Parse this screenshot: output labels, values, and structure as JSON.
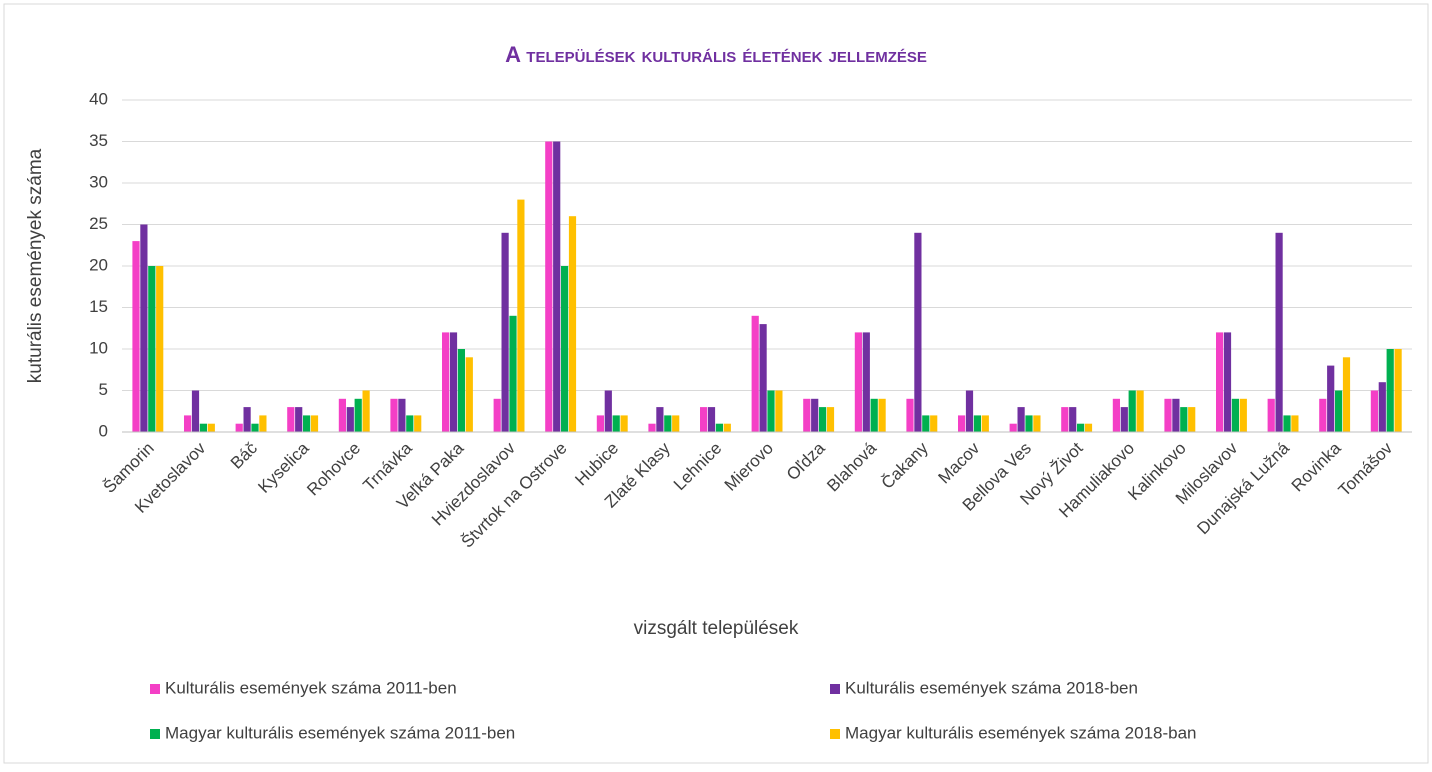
{
  "chart_data": {
    "type": "bar",
    "title": "A települések kulturális életének jellemzése",
    "x_label": "vizsgált települések",
    "y_label": "kuturális események száma",
    "categories": [
      "Šamorin",
      "Kvetoslavov",
      "Báč",
      "Kyselica",
      "Rohovce",
      "Trnávka",
      "Veľká Paka",
      "Hviezdoslavov",
      "Štvrtok na Ostrove",
      "Hubice",
      "Zlaté Klasy",
      "Lehnice",
      "Mierovo",
      "Oľdza",
      "Blahová",
      "Čakany",
      "Macov",
      "Bellova Ves",
      "Nový Život",
      "Hamuliakovo",
      "Kalinkovo",
      "Miloslavov",
      "Dunajská Lužná",
      "Rovinka",
      "Tomášov"
    ],
    "series": [
      {
        "name": "Kulturális események száma 2011-ben",
        "color": "#f43fc6",
        "values": [
          23,
          2,
          1,
          3,
          4,
          4,
          12,
          4,
          35,
          2,
          1,
          3,
          14,
          4,
          12,
          4,
          2,
          1,
          3,
          4,
          4,
          12,
          4,
          4,
          5
        ]
      },
      {
        "name": "Kulturális események száma 2018-ben",
        "color": "#7030a0",
        "values": [
          25,
          5,
          3,
          3,
          3,
          4,
          12,
          24,
          35,
          5,
          3,
          3,
          13,
          4,
          12,
          24,
          5,
          3,
          3,
          3,
          4,
          12,
          24,
          8,
          6
        ]
      },
      {
        "name": "Magyar kulturális események száma 2011-ben",
        "color": "#00b050",
        "values": [
          20,
          1,
          1,
          2,
          4,
          2,
          10,
          14,
          20,
          2,
          2,
          1,
          5,
          3,
          4,
          2,
          2,
          2,
          1,
          5,
          3,
          4,
          2,
          5,
          10
        ]
      },
      {
        "name": "Magyar kulturális események száma 2018-ban",
        "color": "#ffc000",
        "values": [
          20,
          1,
          2,
          2,
          5,
          2,
          9,
          28,
          26,
          2,
          2,
          1,
          5,
          3,
          4,
          2,
          2,
          2,
          1,
          5,
          3,
          4,
          2,
          9,
          10
        ]
      }
    ],
    "ylim": [
      0,
      40
    ],
    "yticks": [
      0,
      5,
      10,
      15,
      20,
      25,
      30,
      35,
      40
    ],
    "grid": true,
    "legend": "bottom"
  }
}
